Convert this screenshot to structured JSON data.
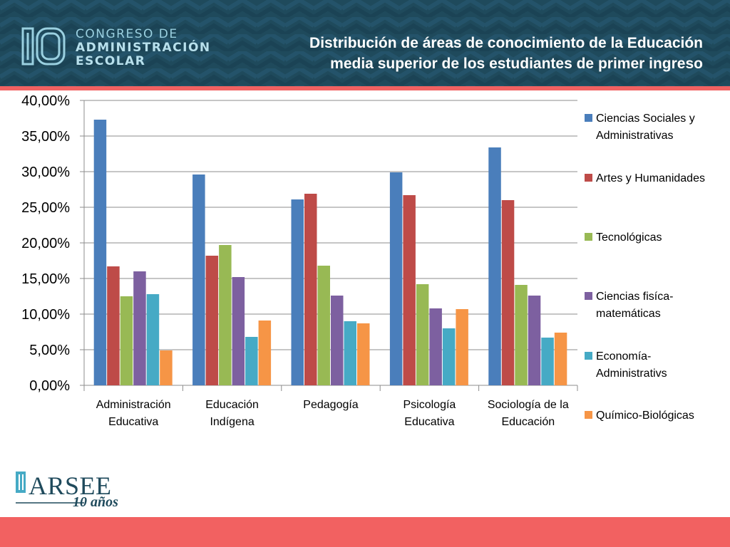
{
  "header": {
    "logo_number": "10",
    "logo_lines": [
      "CONGRESO DE",
      "ADMINISTRACIÓN",
      "ESCOLAR"
    ],
    "title_line1": "Distribución de áreas de conocimiento de la Educación",
    "title_line2": "media superior de los estudiantes de primer ingreso",
    "colors": {
      "header_bg": "#1f4a5c",
      "accent_stripe": "#f26161",
      "logo": "#9ad0e0"
    }
  },
  "footer": {
    "brand": "ARSEE",
    "years": "10 años",
    "colors": {
      "bar": "#f26161",
      "brand": "#1f4a5c"
    }
  },
  "chart_data": {
    "type": "bar",
    "title": "",
    "xlabel": "",
    "ylabel": "",
    "ylim": [
      0,
      40
    ],
    "y_ticks": [
      "0,00%",
      "5,00%",
      "10,00%",
      "15,00%",
      "20,00%",
      "25,00%",
      "30,00%",
      "35,00%",
      "40,00%"
    ],
    "grid": true,
    "legend_position": "right",
    "categories": [
      [
        "Administración",
        "Educativa"
      ],
      [
        "Educación",
        "Indígena"
      ],
      [
        "Pedagogía"
      ],
      [
        "Psicología",
        "Educativa"
      ],
      [
        "Sociología de la",
        "Educación"
      ]
    ],
    "series": [
      {
        "name": [
          "Ciencias Sociales y",
          "Administrativas"
        ],
        "color": "#4a7ebb",
        "values": [
          37.3,
          29.6,
          26.1,
          29.9,
          33.4
        ]
      },
      {
        "name": [
          "Artes y Humanidades"
        ],
        "color": "#be4b48",
        "values": [
          16.7,
          18.2,
          26.9,
          26.7,
          26.0
        ]
      },
      {
        "name": [
          "Tecnológicas"
        ],
        "color": "#98b954",
        "values": [
          12.5,
          19.7,
          16.8,
          14.2,
          14.1
        ]
      },
      {
        "name": [
          "Ciencias fisíca-",
          "matemáticas"
        ],
        "color": "#7d60a0",
        "values": [
          16.0,
          15.2,
          12.6,
          10.8,
          12.6
        ]
      },
      {
        "name": [
          "Economía-",
          "Administrativs"
        ],
        "color": "#46aac5",
        "values": [
          12.8,
          6.8,
          9.0,
          8.0,
          6.7
        ]
      },
      {
        "name": [
          "Químico-Biológicas"
        ],
        "color": "#f69546",
        "values": [
          4.9,
          9.1,
          8.7,
          10.7,
          7.4
        ]
      }
    ]
  }
}
